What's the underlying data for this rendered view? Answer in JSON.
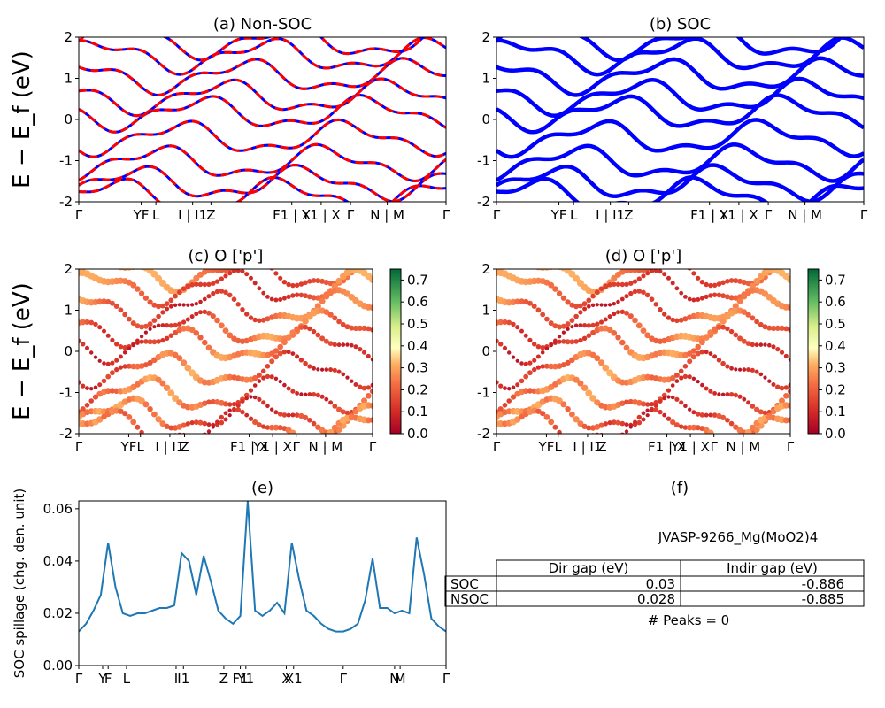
{
  "chart_data": [
    {
      "id": "a",
      "type": "line",
      "title": "(a) Non-SOC",
      "ylabel": "E − E_f (eV)",
      "ylim": [
        -2,
        2
      ],
      "yticks": [
        2,
        1,
        0,
        -1,
        -2
      ],
      "xtick_labels": [
        "Γ",
        "YF",
        "L",
        "I | I1",
        "Z",
        "F1 | X",
        "Y1 | X",
        "Γ",
        "N | M",
        "Γ"
      ],
      "series": [
        {
          "style": "red-dashed",
          "color": "#ff0000",
          "y_at_gamma": [
            1.9,
            1.55,
            1.05,
            0.55,
            0.15,
            -0.45,
            -1.05,
            -1.55,
            -1.85
          ]
        },
        {
          "style": "blue-under",
          "color": "#0000ff",
          "y_at_gamma": [
            1.9,
            1.55,
            1.05,
            0.55,
            0.15,
            -0.45,
            -1.05,
            -1.55,
            -1.85
          ]
        }
      ]
    },
    {
      "id": "b",
      "type": "line",
      "title": "(b) SOC",
      "ylim": [
        -2,
        2
      ],
      "yticks": [
        2,
        1,
        0,
        -1,
        -2
      ],
      "xtick_labels": [
        "Γ",
        "YF",
        "L",
        "I | I1",
        "Z",
        "F1 | X",
        "Y1 | X",
        "Γ",
        "N | M",
        "Γ"
      ],
      "series": [
        {
          "style": "blue-thick",
          "color": "#0000ff",
          "y_at_gamma": [
            1.9,
            1.55,
            1.05,
            0.55,
            0.15,
            -0.45,
            -1.05,
            -1.55,
            -1.85
          ]
        }
      ]
    },
    {
      "id": "c",
      "type": "scatter",
      "title": "(c)  O ['p']",
      "ylabel": "E − E_f (eV)",
      "ylim": [
        -2,
        2
      ],
      "yticks": [
        2,
        1,
        0,
        -1,
        -2
      ],
      "xtick_labels": [
        "Γ",
        "YF",
        "L",
        "I | I1",
        "Z",
        "F1 | X",
        "Y1 | X",
        "Γ",
        "N | M",
        "Γ"
      ],
      "colorbar": {
        "min": 0.0,
        "max": 0.75,
        "ticks": [
          "0.7",
          "0.6",
          "0.5",
          "0.4",
          "0.3",
          "0.2",
          "0.1",
          "0.0"
        ],
        "colormap": "RdYlGn"
      }
    },
    {
      "id": "d",
      "type": "scatter",
      "title": "(d) O ['p']",
      "ylim": [
        -2,
        2
      ],
      "yticks": [
        2,
        1,
        0,
        -1,
        -2
      ],
      "xtick_labels": [
        "Γ",
        "YF",
        "L",
        "I | I1",
        "Z",
        "F1 | X",
        "Y1 | X",
        "Γ",
        "N | M",
        "Γ"
      ],
      "colorbar": {
        "min": 0.0,
        "max": 0.75,
        "ticks": [
          "0.7",
          "0.6",
          "0.5",
          "0.4",
          "0.3",
          "0.2",
          "0.1",
          "0.0"
        ],
        "colormap": "RdYlGn"
      }
    },
    {
      "id": "e",
      "type": "line",
      "title": "(e)",
      "ylabel": "SOC spillage (chg. den. unit)",
      "ylim": [
        0.0,
        0.063
      ],
      "yticks": [
        "0.06",
        "0.04",
        "0.02",
        "0.00"
      ],
      "xtick_labels": [
        "Γ",
        "Y",
        "F",
        "L",
        "I",
        "I1",
        "Z",
        "F1",
        "Y1",
        "X",
        "X1",
        "Γ",
        "N",
        "M",
        "Γ"
      ],
      "series": [
        {
          "color": "#1f77b4",
          "x": [
            0,
            2,
            4,
            6,
            8,
            10,
            12,
            14,
            16,
            18,
            20,
            22,
            24,
            26,
            28,
            30,
            32,
            34,
            36,
            38,
            40,
            42,
            44,
            46,
            48,
            50,
            52,
            54,
            56,
            58,
            60,
            62,
            64,
            66,
            68,
            70,
            72,
            74,
            76,
            78,
            80,
            82,
            84,
            86,
            88,
            90,
            92,
            94,
            96,
            98,
            100
          ],
          "y": [
            0.013,
            0.016,
            0.021,
            0.027,
            0.047,
            0.03,
            0.02,
            0.019,
            0.02,
            0.02,
            0.021,
            0.022,
            0.022,
            0.023,
            0.043,
            0.04,
            0.027,
            0.042,
            0.032,
            0.021,
            0.018,
            0.016,
            0.019,
            0.063,
            0.021,
            0.019,
            0.021,
            0.024,
            0.02,
            0.047,
            0.033,
            0.021,
            0.019,
            0.016,
            0.014,
            0.013,
            0.013,
            0.014,
            0.016,
            0.025,
            0.041,
            0.022,
            0.022,
            0.02,
            0.021,
            0.02,
            0.049,
            0.035,
            0.018,
            0.015,
            0.013
          ]
        }
      ]
    }
  ],
  "info": {
    "title": "(f)",
    "material": "JVASP-9266_Mg(MoO2)4",
    "table": {
      "headers": [
        "Dir gap (eV)",
        "Indir gap (eV)"
      ],
      "rows": [
        {
          "label": "SOC",
          "dir": "0.03",
          "indir": "-0.886"
        },
        {
          "label": "NSOC",
          "dir": "0.028",
          "indir": "-0.885"
        }
      ]
    },
    "peaks": "# Peaks = 0"
  }
}
